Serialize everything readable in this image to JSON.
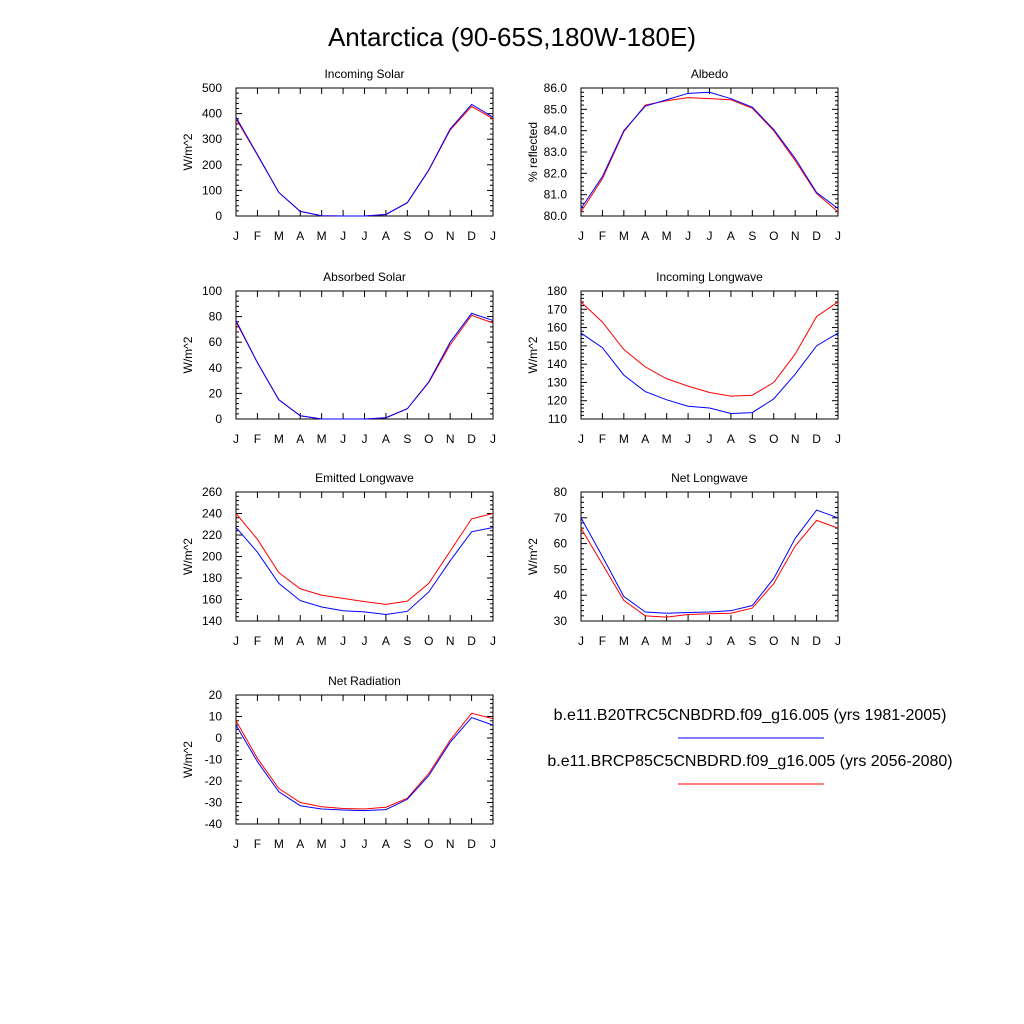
{
  "page_title": "Antarctica (90-65S,180W-180E)",
  "month_labels": [
    "J",
    "F",
    "M",
    "A",
    "M",
    "J",
    "J",
    "A",
    "S",
    "O",
    "N",
    "D",
    "J"
  ],
  "series_colors": {
    "base": "#0000ff",
    "future": "#ff0000"
  },
  "legend": {
    "entries": [
      {
        "label": "b.e11.B20TRC5CNBDRD.f09_g16.005 (yrs 1981-2005)",
        "color": "#0000ff"
      },
      {
        "label": "b.e11.BRCP85C5CNBDRD.f09_g16.005 (yrs 2056-2080)",
        "color": "#ff0000"
      }
    ]
  },
  "chart_data": [
    {
      "type": "line",
      "title": "Incoming Solar",
      "ylabel": "W/m^2",
      "xlabel": "",
      "ylim": [
        0,
        500
      ],
      "yticks": [
        0,
        100,
        200,
        300,
        400,
        500
      ],
      "ytick_labels": [
        "0",
        "100",
        "200",
        "300",
        "400",
        "500"
      ],
      "x": [
        "J",
        "F",
        "M",
        "A",
        "M",
        "J",
        "J",
        "A",
        "S",
        "O",
        "N",
        "D",
        "J"
      ],
      "series": [
        {
          "label": "b.e11.B20TRC5CNBDRD.f09_g16.005 (yrs 1981-2005)",
          "color": "#0000ff",
          "values": [
            386,
            240,
            92,
            18,
            1,
            0,
            0,
            6,
            52,
            180,
            340,
            436,
            386
          ]
        },
        {
          "label": "b.e11.BRCP85C5CNBDRD.f09_g16.005 (yrs 2056-2080)",
          "color": "#ff0000",
          "values": [
            380,
            238,
            92,
            18,
            1,
            0,
            0,
            6,
            52,
            178,
            336,
            428,
            380
          ]
        }
      ]
    },
    {
      "type": "line",
      "title": "Albedo",
      "ylabel": "% reflected",
      "xlabel": "",
      "ylim": [
        80.0,
        86.0
      ],
      "yticks": [
        80,
        81,
        82,
        83,
        84,
        85,
        86
      ],
      "ytick_labels": [
        "80.0",
        "81.0",
        "82.0",
        "83.0",
        "84.0",
        "85.0",
        "86.0"
      ],
      "x": [
        "J",
        "F",
        "M",
        "A",
        "M",
        "J",
        "J",
        "A",
        "S",
        "O",
        "N",
        "D",
        "J"
      ],
      "series": [
        {
          "label": "b.e11.B20TRC5CNBDRD.f09_g16.005 (yrs 1981-2005)",
          "color": "#0000ff",
          "values": [
            80.35,
            81.85,
            84.0,
            85.15,
            85.45,
            85.75,
            85.8,
            85.5,
            85.1,
            84.05,
            82.7,
            81.1,
            80.35
          ]
        },
        {
          "label": "b.e11.BRCP85C5CNBDRD.f09_g16.005 (yrs 2056-2080)",
          "color": "#ff0000",
          "values": [
            80.2,
            81.75,
            83.95,
            85.2,
            85.4,
            85.55,
            85.5,
            85.45,
            85.05,
            84.0,
            82.6,
            81.05,
            80.2
          ]
        }
      ]
    },
    {
      "type": "line",
      "title": "Absorbed Solar",
      "ylabel": "W/m^2",
      "xlabel": "",
      "ylim": [
        0,
        100
      ],
      "yticks": [
        0,
        20,
        40,
        60,
        80,
        100
      ],
      "ytick_labels": [
        "0",
        "20",
        "40",
        "60",
        "80",
        "100"
      ],
      "x": [
        "J",
        "F",
        "M",
        "A",
        "M",
        "J",
        "J",
        "A",
        "S",
        "O",
        "N",
        "D",
        "J"
      ],
      "series": [
        {
          "label": "b.e11.B20TRC5CNBDRD.f09_g16.005 (yrs 1981-2005)",
          "color": "#0000ff",
          "values": [
            77,
            44,
            15,
            2.5,
            0,
            0,
            0,
            1,
            8,
            29,
            60,
            82.5,
            77
          ]
        },
        {
          "label": "b.e11.BRCP85C5CNBDRD.f09_g16.005 (yrs 2056-2080)",
          "color": "#ff0000",
          "values": [
            76,
            44,
            15,
            2.5,
            0,
            0,
            0,
            1,
            8,
            28.5,
            58,
            81,
            75
          ]
        }
      ]
    },
    {
      "type": "line",
      "title": "Incoming Longwave",
      "ylabel": "W/m^2",
      "xlabel": "",
      "ylim": [
        110,
        180
      ],
      "yticks": [
        110,
        120,
        130,
        140,
        150,
        160,
        170,
        180
      ],
      "ytick_labels": [
        "110",
        "120",
        "130",
        "140",
        "150",
        "160",
        "170",
        "180"
      ],
      "x": [
        "J",
        "F",
        "M",
        "A",
        "M",
        "J",
        "J",
        "A",
        "S",
        "O",
        "N",
        "D",
        "J"
      ],
      "series": [
        {
          "label": "b.e11.B20TRC5CNBDRD.f09_g16.005 (yrs 1981-2005)",
          "color": "#0000ff",
          "values": [
            157,
            149,
            134,
            125,
            120.5,
            117,
            116,
            113,
            113.5,
            121,
            134.5,
            150,
            157
          ]
        },
        {
          "label": "b.e11.BRCP85C5CNBDRD.f09_g16.005 (yrs 2056-2080)",
          "color": "#ff0000",
          "values": [
            174,
            163,
            148,
            138.5,
            132,
            128,
            124.5,
            122.5,
            123,
            130,
            145.5,
            166,
            174
          ]
        }
      ]
    },
    {
      "type": "line",
      "title": "Emitted Longwave",
      "ylabel": "W/m^2",
      "xlabel": "",
      "ylim": [
        140,
        260
      ],
      "yticks": [
        140,
        160,
        180,
        200,
        220,
        240,
        260
      ],
      "ytick_labels": [
        "140",
        "160",
        "180",
        "200",
        "220",
        "240",
        "260"
      ],
      "x": [
        "J",
        "F",
        "M",
        "A",
        "M",
        "J",
        "J",
        "A",
        "S",
        "O",
        "N",
        "D",
        "J"
      ],
      "series": [
        {
          "label": "b.e11.B20TRC5CNBDRD.f09_g16.005 (yrs 1981-2005)",
          "color": "#0000ff",
          "values": [
            227,
            204,
            175,
            159,
            153,
            149.5,
            148.5,
            146,
            149,
            167,
            196,
            223,
            227
          ]
        },
        {
          "label": "b.e11.BRCP85C5CNBDRD.f09_g16.005 (yrs 2056-2080)",
          "color": "#ff0000",
          "values": [
            240,
            216,
            185,
            170,
            164,
            161,
            158,
            155.5,
            158.5,
            175,
            205,
            235,
            240
          ]
        }
      ]
    },
    {
      "type": "line",
      "title": "Net Longwave",
      "ylabel": "W/m^2",
      "xlabel": "",
      "ylim": [
        30,
        80
      ],
      "yticks": [
        30,
        40,
        50,
        60,
        70,
        80
      ],
      "ytick_labels": [
        "30",
        "40",
        "50",
        "60",
        "70",
        "80"
      ],
      "x": [
        "J",
        "F",
        "M",
        "A",
        "M",
        "J",
        "J",
        "A",
        "S",
        "O",
        "N",
        "D",
        "J"
      ],
      "series": [
        {
          "label": "b.e11.B20TRC5CNBDRD.f09_g16.005 (yrs 1981-2005)",
          "color": "#0000ff",
          "values": [
            70,
            55,
            39.5,
            33.5,
            33,
            33.3,
            33.5,
            34,
            36,
            46.5,
            62,
            73,
            70
          ]
        },
        {
          "label": "b.e11.BRCP85C5CNBDRD.f09_g16.005 (yrs 2056-2080)",
          "color": "#ff0000",
          "values": [
            66,
            52,
            38,
            32,
            31.5,
            32.5,
            32.8,
            33,
            35,
            44.5,
            59,
            69,
            66
          ]
        }
      ]
    },
    {
      "type": "line",
      "title": "Net Radiation",
      "ylabel": "W/m^2",
      "xlabel": "",
      "ylim": [
        -40,
        20
      ],
      "yticks": [
        -40,
        -30,
        -20,
        -10,
        0,
        10,
        20
      ],
      "ytick_labels": [
        "-40",
        "-30",
        "-20",
        "-10",
        "0",
        "10",
        "20"
      ],
      "x": [
        "J",
        "F",
        "M",
        "A",
        "M",
        "J",
        "J",
        "A",
        "S",
        "O",
        "N",
        "D",
        "J"
      ],
      "series": [
        {
          "label": "b.e11.B20TRC5CNBDRD.f09_g16.005 (yrs 1981-2005)",
          "color": "#0000ff",
          "values": [
            6,
            -11,
            -25,
            -31.5,
            -33,
            -33.5,
            -33.8,
            -33.3,
            -28.5,
            -17.5,
            -2,
            9.5,
            6
          ]
        },
        {
          "label": "b.e11.BRCP85C5CNBDRD.f09_g16.005 (yrs 2056-2080)",
          "color": "#ff0000",
          "values": [
            8,
            -9.5,
            -23.5,
            -30,
            -32,
            -32.8,
            -33,
            -32.2,
            -28,
            -16.5,
            -1,
            11.5,
            9
          ]
        }
      ]
    }
  ]
}
